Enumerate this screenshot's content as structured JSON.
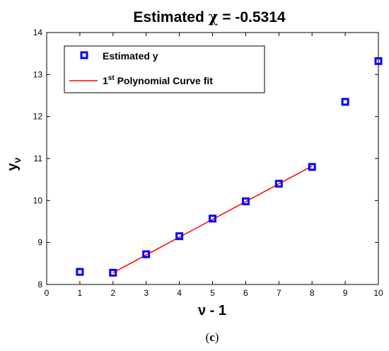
{
  "chart_data": {
    "type": "scatter",
    "title": "Estimated χ = -0.5314",
    "xlabel": "ν - 1",
    "ylabel": "yν",
    "xlim": [
      0,
      10
    ],
    "ylim": [
      8,
      14
    ],
    "xticks": [
      0,
      1,
      2,
      3,
      4,
      5,
      6,
      7,
      8,
      9,
      10
    ],
    "yticks": [
      8,
      9,
      10,
      11,
      12,
      13,
      14
    ],
    "grid": false,
    "legend_position": "top-left",
    "series": [
      {
        "name": "Estimated y",
        "kind": "markers",
        "marker": "square",
        "color": "#0000ff",
        "x": [
          1,
          2,
          3,
          4,
          5,
          6,
          7,
          8,
          9,
          10
        ],
        "y": [
          8.3,
          8.28,
          8.72,
          9.15,
          9.57,
          9.98,
          10.4,
          10.8,
          12.35,
          13.32
        ]
      },
      {
        "name": "1st Polynomial Curve fit",
        "kind": "line",
        "color": "#ff0000",
        "x": [
          2,
          8
        ],
        "y": [
          8.28,
          10.82
        ]
      }
    ]
  },
  "legend": {
    "item1": "Estimated y",
    "item2_base": "1",
    "item2_sup": "st",
    "item2_rest": " Polynomial Curve fit"
  },
  "labels": {
    "title_prefix": "Estimated ",
    "title_symbol": "χ",
    "title_suffix": " = -0.5314",
    "ylabel_main": "y",
    "ylabel_sub": "ν",
    "xlabel": "ν - 1"
  },
  "caption": {
    "open": "(",
    "letter": "c",
    "close": ")"
  }
}
